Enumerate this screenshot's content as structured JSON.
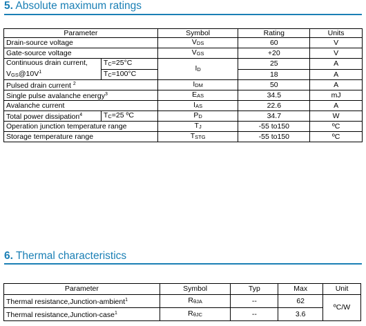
{
  "section5": {
    "number": "5.",
    "title": "Absolute maximum ratings"
  },
  "abs_table": {
    "headers": {
      "parameter": "Parameter",
      "symbol": "Symbol",
      "rating": "Rating",
      "units": "Units"
    },
    "rows": [
      {
        "param": "Drain-source voltage",
        "sym": "V",
        "sub": "DS",
        "rating": "60",
        "unit": "V"
      },
      {
        "param": "Gate-source voltage",
        "sym": "V",
        "sub": "GS",
        "rating": "+20",
        "unit": "V"
      },
      {
        "param_a": "Continuous drain current,",
        "param_b": "V",
        "param_b_sub": "GS",
        "param_b_rest": "@10V",
        "param_b_sup": "1",
        "cond1": "T",
        "cond1_sub": "C",
        "cond1_rest": "=25°C",
        "cond2": "T",
        "cond2_sub": "C",
        "cond2_rest": "=100°C",
        "sym": "I",
        "sub": "D",
        "rating1": "25",
        "rating2": "18",
        "unit1": "A",
        "unit2": "A"
      },
      {
        "param": "Pulsed drain current",
        "sup": "2",
        "sym": "I",
        "sub": "DM",
        "rating": "50",
        "unit": "A"
      },
      {
        "param": "Single pulse avalanche energy",
        "sup": "3",
        "sym": "E",
        "sub": "AS",
        "rating": "34.5",
        "unit": "mJ"
      },
      {
        "param": "Avalanche current",
        "sym": "I",
        "sub": "AS",
        "rating": "22.6",
        "unit": "A"
      },
      {
        "param": "Total power dissipation",
        "sup": "4",
        "cond": "T",
        "cond_sub": "C",
        "cond_rest": "=25 ºC",
        "sym": "P",
        "sub": "D",
        "rating": "34.7",
        "unit": "W"
      },
      {
        "param": "Operation junction temperature range",
        "sym": "T",
        "sub": "J",
        "rating": "-55 to150",
        "unit": "ºC"
      },
      {
        "param": "Storage temperature range",
        "sym": "T",
        "sub": "STG",
        "rating": "-55 to150",
        "unit": "ºC"
      }
    ]
  },
  "section6": {
    "number": "6.",
    "title": "Thermal characteristics"
  },
  "thermal_table": {
    "headers": {
      "parameter": "Parameter",
      "symbol": "Symbol",
      "typ": "Typ",
      "max": "Max",
      "unit": "Unit"
    },
    "rows": [
      {
        "param": "Thermal resistance,Junction-ambient",
        "sup": "1",
        "sym": "R",
        "sub": "θJA",
        "typ": "--",
        "max": "62"
      },
      {
        "param": "Thermal resistance,Junction-case",
        "sup": "1",
        "sym": "R",
        "sub": "θJC",
        "typ": "--",
        "max": "3.6"
      }
    ],
    "unit": "ºC/W"
  }
}
